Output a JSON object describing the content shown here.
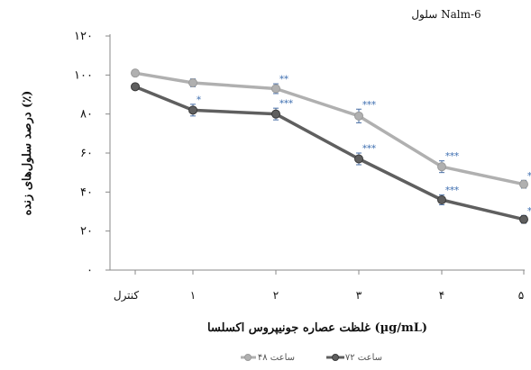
{
  "chart_data": {
    "type": "line",
    "title": "سلول Nalm-6",
    "xlabel": "غلظت عصاره جونیپروس اکسلسا (µg/mL)",
    "ylabel": "درصد سلول‌های زنده (٪)",
    "categories": [
      "کنترل",
      "۱",
      "۲",
      "۳",
      "۴",
      "۵"
    ],
    "yticks": [
      "۰",
      "۲۰",
      "۴۰",
      "۶۰",
      "۸۰",
      "۱۰۰",
      "۱۲۰"
    ],
    "ylim": [
      0,
      120
    ],
    "grid": false,
    "legend_position": "bottom-center",
    "series": [
      {
        "name": "ساعت ۴۸",
        "color": "#b0b0b0",
        "values": [
          101,
          96,
          93,
          79,
          53,
          44
        ],
        "errors": [
          1.5,
          2,
          2.5,
          3.5,
          3,
          2
        ],
        "significance": [
          "",
          "",
          "**",
          "***",
          "***",
          "**"
        ]
      },
      {
        "name": "ساعت ۷۲",
        "color": "#5f5f5f",
        "values": [
          94,
          82,
          80,
          57,
          36,
          26
        ],
        "errors": [
          1.5,
          3,
          3,
          3,
          2.5,
          2
        ],
        "significance": [
          "",
          "*",
          "***",
          "***",
          "***",
          "*"
        ]
      }
    ]
  }
}
